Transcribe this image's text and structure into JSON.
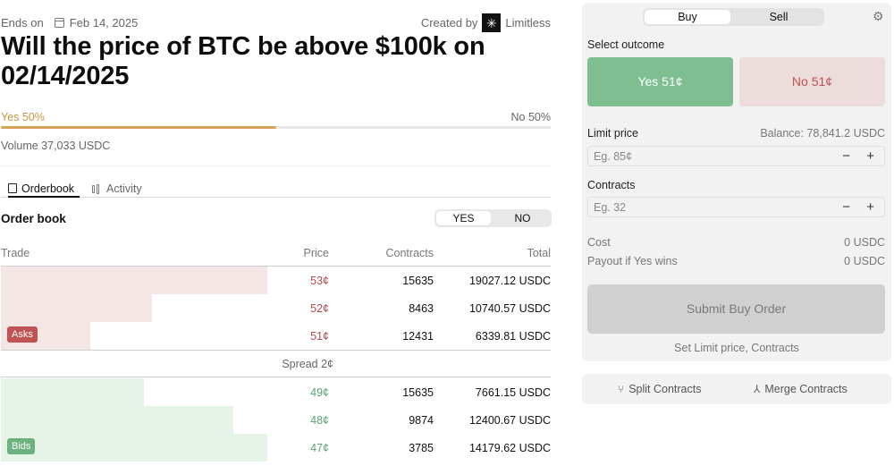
{
  "market": {
    "ends_label": "Ends on",
    "ends_date": "Feb 14, 2025",
    "created_by_label": "Created by",
    "creator_name": "Limitless",
    "title": "Will the price of BTC be above $100k on 02/14/2025",
    "yes_prob_label": "Yes 50%",
    "no_prob_label": "No 50%",
    "yes_prob_fraction": 0.5,
    "volume": "Volume 37,033 USDC"
  },
  "tabs": [
    {
      "label": "Orderbook",
      "active": true,
      "icon": "book-icon"
    },
    {
      "label": "Activity",
      "active": false,
      "icon": "activity-icon"
    }
  ],
  "orderbook": {
    "title": "Order book",
    "toggle": {
      "yes": "YES",
      "no": "NO",
      "selected": "YES"
    },
    "columns": {
      "trade": "Trade",
      "price": "Price",
      "contracts": "Contracts",
      "total": "Total"
    },
    "asks_badge": "Asks",
    "bids_badge": "Bids",
    "spread": "Spread 2¢",
    "asks": [
      {
        "price": "53¢",
        "contracts": "15635",
        "total": "19027.12 USDC",
        "depth": 0.485
      },
      {
        "price": "52¢",
        "contracts": "8463",
        "total": "10740.57 USDC",
        "depth": 0.275
      },
      {
        "price": "51¢",
        "contracts": "12431",
        "total": "6339.81 USDC",
        "depth": 0.162
      }
    ],
    "bids": [
      {
        "price": "49¢",
        "contracts": "15635",
        "total": "7661.15 USDC",
        "depth": 0.26
      },
      {
        "price": "48¢",
        "contracts": "9874",
        "total": "12400.67 USDC",
        "depth": 0.423
      },
      {
        "price": "47¢",
        "contracts": "3785",
        "total": "14179.62 USDC",
        "depth": 0.485
      }
    ]
  },
  "trade_panel": {
    "buy_label": "Buy",
    "sell_label": "Sell",
    "selected_side": "Buy",
    "settings_icon": "gear-icon",
    "select_outcome_label": "Select outcome",
    "yes_button": "Yes 51¢",
    "no_button": "No 51¢",
    "limit_price_label": "Limit price",
    "balance": "Balance: 78,841.2 USDC",
    "limit_price_placeholder": "Eg. 85¢",
    "limit_price_value": "",
    "contracts_label": "Contracts",
    "contracts_placeholder": "Eg. 32",
    "contracts_value": "",
    "minus": "−",
    "plus": "+",
    "cost_label": "Cost",
    "cost_value": "0 USDC",
    "payout_label": "Payout if Yes wins",
    "payout_value": "0 USDC",
    "submit_label": "Submit Buy Order",
    "hint": "Set Limit price, Contracts"
  },
  "actions": {
    "split_label": "Split Contracts",
    "merge_label": "Merge Contracts"
  },
  "colors": {
    "yes_accent": "#c8963e",
    "ask_red": "#b94a4a",
    "bid_green": "#5aa673",
    "yes_button": "#7fbe90",
    "no_button": "#ecdcdc"
  }
}
